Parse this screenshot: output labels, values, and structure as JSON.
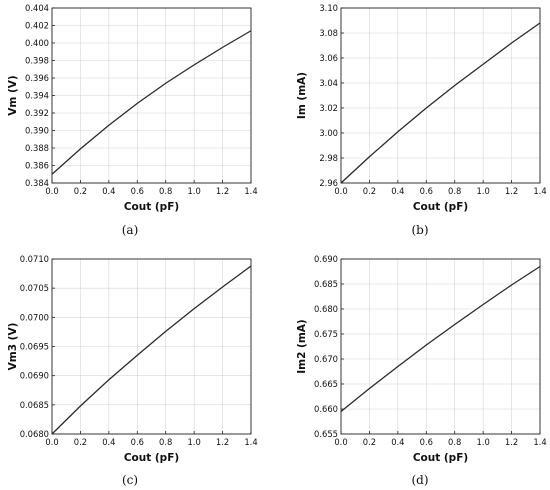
{
  "chart_data": [
    {
      "type": "line",
      "caption": "(a)",
      "xlabel": "Cout (pF)",
      "ylabel": "Vm (V)",
      "xlim": [
        0,
        1.4
      ],
      "ylim": [
        0.384,
        0.404
      ],
      "grid": true,
      "x_ticks": [
        "0.0",
        "0.2",
        "0.4",
        "0.6",
        "0.8",
        "1.0",
        "1.2",
        "1.4"
      ],
      "y_ticks": [
        "0.384",
        "0.386",
        "0.388",
        "0.390",
        "0.392",
        "0.394",
        "0.396",
        "0.398",
        "0.400",
        "0.402",
        "0.404"
      ],
      "series": [
        {
          "x": [
            0,
            0.2,
            0.4,
            0.6,
            0.8,
            1.0,
            1.2,
            1.4
          ],
          "y": [
            0.385,
            0.3879,
            0.3906,
            0.3931,
            0.3954,
            0.3975,
            0.3995,
            0.4014
          ]
        }
      ]
    },
    {
      "type": "line",
      "caption": "(b)",
      "xlabel": "Cout (pF)",
      "ylabel": "Im (mA)",
      "xlim": [
        0,
        1.4
      ],
      "ylim": [
        2.96,
        3.1
      ],
      "grid": true,
      "x_ticks": [
        "0.0",
        "0.2",
        "0.4",
        "0.6",
        "0.8",
        "1.0",
        "1.2",
        "1.4"
      ],
      "y_ticks": [
        "2.96",
        "2.98",
        "3.00",
        "3.02",
        "3.04",
        "3.06",
        "3.08",
        "3.10"
      ],
      "series": [
        {
          "x": [
            0,
            0.2,
            0.4,
            0.6,
            0.8,
            1.0,
            1.2,
            1.4
          ],
          "y": [
            2.96,
            2.981,
            3.001,
            3.02,
            3.038,
            3.055,
            3.072,
            3.088
          ]
        }
      ]
    },
    {
      "type": "line",
      "caption": "(c)",
      "xlabel": "Cout (pF)",
      "ylabel": "Vm3 (V)",
      "xlim": [
        0,
        1.4
      ],
      "ylim": [
        0.068,
        0.071
      ],
      "grid": true,
      "x_ticks": [
        "0.0",
        "0.2",
        "0.4",
        "0.6",
        "0.8",
        "1.0",
        "1.2",
        "1.4"
      ],
      "y_ticks": [
        "0.0680",
        "0.0685",
        "0.0690",
        "0.0695",
        "0.0700",
        "0.0705",
        "0.0710"
      ],
      "series": [
        {
          "x": [
            0,
            0.2,
            0.4,
            0.6,
            0.8,
            1.0,
            1.2,
            1.4
          ],
          "y": [
            0.068,
            0.06848,
            0.06893,
            0.06935,
            0.06976,
            0.07015,
            0.07052,
            0.07088
          ]
        }
      ]
    },
    {
      "type": "line",
      "caption": "(d)",
      "xlabel": "Cout (pF)",
      "ylabel": "Im2 (mA)",
      "xlim": [
        0,
        1.4
      ],
      "ylim": [
        0.655,
        0.69
      ],
      "grid": true,
      "x_ticks": [
        "0.0",
        "0.2",
        "0.4",
        "0.6",
        "0.8",
        "1.0",
        "1.2",
        "1.4"
      ],
      "y_ticks": [
        "0.655",
        "0.660",
        "0.665",
        "0.670",
        "0.675",
        "0.680",
        "0.685",
        "0.690"
      ],
      "series": [
        {
          "x": [
            0,
            0.2,
            0.4,
            0.6,
            0.8,
            1.0,
            1.2,
            1.4
          ],
          "y": [
            0.6595,
            0.6641,
            0.6685,
            0.6728,
            0.6769,
            0.6809,
            0.6848,
            0.6885
          ]
        }
      ]
    }
  ]
}
